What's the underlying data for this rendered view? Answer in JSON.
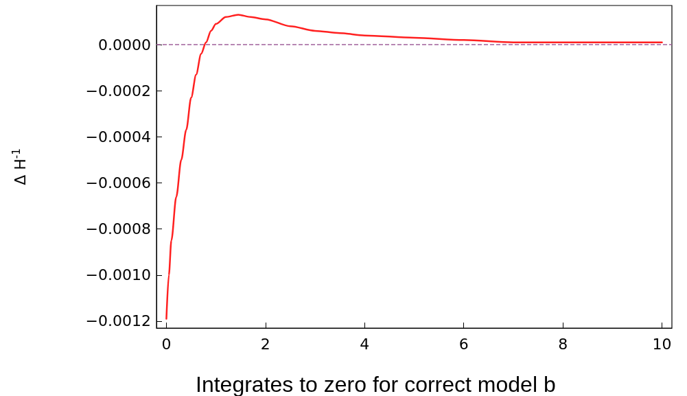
{
  "chart_data": {
    "type": "line",
    "ylabel": "Δ H$^{-1}$",
    "x": [
      0,
      0.05,
      0.1,
      0.2,
      0.3,
      0.4,
      0.5,
      0.6,
      0.7,
      0.8,
      0.9,
      1.0,
      1.2,
      1.45,
      1.7,
      2,
      2.5,
      3,
      3.5,
      4,
      5,
      6,
      7,
      8,
      9,
      10
    ],
    "series": [
      {
        "color": "#ff2020",
        "values": [
          -0.00119,
          -0.001,
          -0.00085,
          -0.00066,
          -0.0005,
          -0.00037,
          -0.00023,
          -0.00013,
          -4e-05,
          1e-05,
          6e-05,
          9e-05,
          0.00012,
          0.00013,
          0.00012,
          0.00011,
          8e-05,
          6e-05,
          5e-05,
          4e-05,
          3e-05,
          2e-05,
          1e-05,
          1e-05,
          1e-05,
          1e-05
        ]
      }
    ],
    "xlim": [
      -0.2,
      10.2
    ],
    "ylim": [
      -0.00123,
      0.00017
    ],
    "xticks": [
      0,
      2,
      4,
      6,
      8,
      10
    ],
    "yticks": [
      {
        "value": 0,
        "label": "0.0000"
      },
      {
        "value": -0.0002,
        "label": "−0.0002"
      },
      {
        "value": -0.0004,
        "label": "−0.0004"
      },
      {
        "value": -0.0006,
        "label": "−0.0006"
      },
      {
        "value": -0.0008,
        "label": "−0.0008"
      },
      {
        "value": -0.001,
        "label": "−0.0010"
      },
      {
        "value": -0.0012,
        "label": "−0.0012"
      }
    ],
    "ref_lines": [
      {
        "axis": "y",
        "value": 0,
        "color": "#a0609a",
        "line_style": "dashed"
      }
    ],
    "annotations": [
      "Integrates to zero for correct model b"
    ],
    "grid": false,
    "marker": "none",
    "line_style": "solid"
  }
}
